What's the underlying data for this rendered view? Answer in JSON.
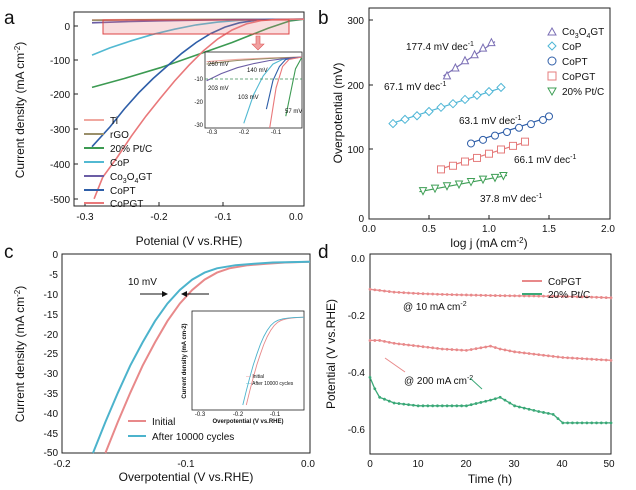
{
  "chart_data": [
    {
      "panel": "a",
      "type": "line",
      "xlabel": "Potenial (V vs.RHE)",
      "ylabel": "Current density (mA cm⁻²)",
      "xlim": [
        -0.32,
        0
      ],
      "ylim": [
        -520,
        20
      ],
      "xticks": [
        -0.3,
        -0.2,
        -0.1,
        0.0
      ],
      "yticks": [
        0,
        -100,
        -200,
        -300,
        -400,
        -500
      ],
      "series": [
        {
          "name": "Ti",
          "color": "#f0a8a0",
          "x": [
            -0.295,
            -0.25,
            -0.2,
            -0.15,
            -0.1,
            -0.05,
            0
          ],
          "y": [
            -2,
            -1.5,
            -1,
            -0.7,
            -0.4,
            -0.2,
            0
          ]
        },
        {
          "name": "rGO",
          "color": "#9a8f6a",
          "x": [
            -0.295,
            -0.25,
            -0.2,
            -0.15,
            -0.1,
            -0.05,
            0
          ],
          "y": [
            -3,
            -2.2,
            -1.5,
            -1,
            -0.6,
            -0.3,
            0
          ]
        },
        {
          "name": "20% Pt/C",
          "color": "#3c9a52",
          "x": [
            -0.295,
            -0.25,
            -0.2,
            -0.15,
            -0.1,
            -0.05,
            -0.02,
            0
          ],
          "y": [
            -190,
            -165,
            -135,
            -100,
            -65,
            -25,
            -5,
            0
          ]
        },
        {
          "name": "CoP",
          "color": "#52b9d2",
          "x": [
            -0.295,
            -0.27,
            -0.24,
            -0.21,
            -0.18,
            -0.15,
            -0.12,
            -0.09,
            -0.06,
            0
          ],
          "y": [
            -100,
            -80,
            -60,
            -42,
            -28,
            -16,
            -8,
            -3,
            -1,
            0
          ]
        },
        {
          "name": "Co3O4GT",
          "color": "#6b5da5",
          "x": [
            -0.295,
            -0.25,
            -0.2,
            -0.15,
            -0.1,
            -0.05,
            0
          ],
          "y": [
            -10,
            -7,
            -4.5,
            -2.8,
            -1.5,
            -0.6,
            0
          ]
        },
        {
          "name": "CoPT",
          "color": "#2e5ea8",
          "x": [
            -0.295,
            -0.27,
            -0.25,
            -0.23,
            -0.21,
            -0.19,
            -0.17,
            -0.15,
            -0.13,
            -0.11,
            -0.09,
            -0.07,
            -0.05,
            0
          ],
          "y": [
            -355,
            -300,
            -250,
            -205,
            -165,
            -130,
            -95,
            -65,
            -40,
            -22,
            -10,
            -4,
            -1,
            0
          ]
        },
        {
          "name": "CoPGT",
          "color": "#e9787a",
          "x": [
            -0.292,
            -0.28,
            -0.26,
            -0.24,
            -0.22,
            -0.2,
            -0.18,
            -0.16,
            -0.14,
            -0.12,
            -0.1,
            -0.08,
            -0.06,
            -0.04,
            0
          ],
          "y": [
            -500,
            -440,
            -385,
            -325,
            -270,
            -220,
            -172,
            -128,
            -88,
            -55,
            -30,
            -13,
            -4,
            -1,
            0
          ]
        }
      ],
      "legend": [
        "Ti",
        "rGO",
        "20% Pt/C",
        "CoP",
        "Co3O4GT",
        "CoPT",
        "CoPGT"
      ],
      "inset": {
        "xlim": [
          -0.3,
          0
        ],
        "ylim": [
          -30,
          0
        ],
        "xticks": [
          -0.3,
          -0.2,
          -0.1
        ],
        "yticks": [
          -10,
          -20,
          -30
        ],
        "marker_line": -10,
        "labels": [
          "260 mV",
          "140 mV",
          "203 mV",
          "103 mV",
          "57 mV"
        ]
      }
    },
    {
      "panel": "b",
      "type": "scatter",
      "xlabel": "log j (mA cm⁻²)",
      "ylabel": "Overpotential (mV)",
      "xlim": [
        0.0,
        2.0
      ],
      "ylim": [
        0,
        350
      ],
      "xticks": [
        0.0,
        0.5,
        1.0,
        1.5,
        2.0
      ],
      "yticks": [
        0,
        100,
        200,
        300
      ],
      "series": [
        {
          "name": "Co3O4GT",
          "color": "#7b6fb5",
          "marker": "triangle-up",
          "tafel": "177.4 mV dec⁻¹",
          "x": [
            0.65,
            0.72,
            0.8,
            0.88,
            0.95,
            1.02
          ],
          "y": [
            230,
            243,
            255,
            265,
            276,
            285
          ]
        },
        {
          "name": "CoP",
          "color": "#4fb6d6",
          "marker": "diamond",
          "tafel": "67.1 mV dec⁻¹",
          "x": [
            0.2,
            0.3,
            0.4,
            0.5,
            0.6,
            0.7,
            0.8,
            0.9,
            1.0,
            1.1
          ],
          "y": [
            150,
            157,
            163,
            170,
            177,
            183,
            190,
            197,
            203,
            210
          ]
        },
        {
          "name": "CoPT",
          "color": "#2f5ea8",
          "marker": "circle",
          "tafel": "63.1 mV dec⁻¹",
          "x": [
            0.85,
            0.95,
            1.05,
            1.15,
            1.25,
            1.35,
            1.45,
            1.5
          ],
          "y": [
            117,
            123,
            130,
            136,
            143,
            149,
            156,
            162
          ]
        },
        {
          "name": "CoPGT",
          "color": "#e57c7c",
          "marker": "square",
          "tafel": "66.1 mV dec⁻¹",
          "x": [
            0.6,
            0.7,
            0.8,
            0.9,
            1.0,
            1.1,
            1.2,
            1.3
          ],
          "y": [
            74,
            80,
            87,
            93,
            100,
            107,
            113,
            120
          ]
        },
        {
          "name": "20% Pt/C",
          "color": "#3f9f56",
          "marker": "triangle-down",
          "tafel": "37.8 mV dec⁻¹",
          "x": [
            0.45,
            0.55,
            0.65,
            0.75,
            0.85,
            0.95,
            1.05,
            1.12
          ],
          "y": [
            38,
            42,
            46,
            49,
            53,
            57,
            60,
            63
          ]
        }
      ],
      "legend": [
        "Co3O4GT",
        "CoP",
        "CoPT",
        "CoPGT",
        "20% Pt/C"
      ]
    },
    {
      "panel": "c",
      "type": "line",
      "xlabel": "Overpotential (V vs.RHE)",
      "ylabel": "Current density (mA cm⁻²)",
      "xlim": [
        -0.2,
        0.0
      ],
      "ylim": [
        -50,
        0
      ],
      "xticks": [
        -0.2,
        -0.1,
        0.0
      ],
      "yticks": [
        0,
        -5,
        -10,
        -15,
        -20,
        -25,
        -30,
        -35,
        -40,
        -45,
        -50
      ],
      "annotation": "10 mV",
      "series": [
        {
          "name": "Initial",
          "color": "#e8898a",
          "x": [
            -0.165,
            -0.155,
            -0.145,
            -0.135,
            -0.125,
            -0.115,
            -0.105,
            -0.095,
            -0.085,
            -0.075,
            -0.065,
            -0.05,
            -0.035,
            -0.02,
            0.0
          ],
          "y": [
            -50,
            -42,
            -34.5,
            -27.5,
            -21.5,
            -16,
            -11.5,
            -8,
            -5.3,
            -3.5,
            -2.4,
            -1.6,
            -1.2,
            -0.9,
            -0.7
          ]
        },
        {
          "name": "After 10000 cycles",
          "color": "#4cb3cc",
          "x": [
            -0.175,
            -0.165,
            -0.155,
            -0.145,
            -0.135,
            -0.125,
            -0.115,
            -0.105,
            -0.095,
            -0.085,
            -0.075,
            -0.06,
            -0.045,
            -0.03,
            0.0
          ],
          "y": [
            -50,
            -42,
            -34.5,
            -27.5,
            -21.5,
            -16,
            -11.5,
            -8,
            -5.3,
            -3.5,
            -2.4,
            -1.6,
            -1.2,
            -0.9,
            -0.7
          ]
        }
      ],
      "legend": [
        "Initial",
        "After 10000 cycles"
      ],
      "inset": {
        "xlabel": "Overpotential (V vs.RHE)",
        "ylabel": "Current density (mA cm⁻²)",
        "xticks": [
          -0.3,
          -0.2,
          -0.1
        ],
        "legend": [
          "Initial",
          "After 10000 cycles"
        ]
      }
    },
    {
      "panel": "d",
      "type": "line",
      "xlabel": "Time (h)",
      "ylabel": "Potential (V vs.RHE)",
      "xlim": [
        0,
        50
      ],
      "ylim": [
        -0.7,
        0.0
      ],
      "xticks": [
        0,
        10,
        20,
        30,
        40,
        50
      ],
      "yticks": [
        0.0,
        -0.2,
        -0.4,
        -0.6
      ],
      "annotations": [
        "@ 10 mA cm⁻²",
        "@ 200 mA cm⁻²"
      ],
      "series": [
        {
          "name": "CoPGT @10",
          "color": "#e8898a",
          "x": [
            0,
            5,
            10,
            15,
            20,
            25,
            30,
            35,
            40,
            45,
            50
          ],
          "y": [
            -0.11,
            -0.12,
            -0.125,
            -0.128,
            -0.13,
            -0.132,
            -0.133,
            -0.134,
            -0.135,
            -0.137,
            -0.14
          ]
        },
        {
          "name": "CoPGT @200",
          "color": "#e8898a",
          "x": [
            0,
            2,
            5,
            10,
            15,
            20,
            25,
            27,
            30,
            35,
            40,
            45,
            50
          ],
          "y": [
            -0.29,
            -0.29,
            -0.3,
            -0.31,
            -0.32,
            -0.325,
            -0.31,
            -0.32,
            -0.33,
            -0.34,
            -0.35,
            -0.355,
            -0.36
          ]
        },
        {
          "name": "20% Pt/C",
          "color": "#3aa877",
          "x": [
            0,
            1,
            2,
            5,
            10,
            15,
            20,
            25,
            27,
            30,
            35,
            38,
            40,
            45,
            50
          ],
          "y": [
            -0.42,
            -0.46,
            -0.49,
            -0.51,
            -0.52,
            -0.52,
            -0.52,
            -0.5,
            -0.49,
            -0.52,
            -0.54,
            -0.55,
            -0.58,
            -0.58,
            -0.58
          ]
        }
      ],
      "legend": [
        "CoPGT",
        "20% Pt/C"
      ]
    }
  ],
  "labels": {
    "a": {
      "panel": "a",
      "xlabel": "Potenial (V vs.RHE)",
      "ylabel": "Current density (mA cm",
      "ylabel_sup": "-2",
      "ylabel_end": ")",
      "xticks": [
        "-0.3",
        "-0.2",
        "-0.1",
        "0.0"
      ],
      "yticks": [
        "0",
        "-100",
        "-200",
        "-300",
        "-400",
        "-500"
      ],
      "legend": [
        "Ti",
        "rGO",
        "20% Pt/C",
        "CoP",
        "Co",
        "CoPT",
        "CoPGT"
      ],
      "legend_co3o4": {
        "a": "3",
        "b": "O",
        "c": "4",
        "d": "GT"
      },
      "inset": {
        "ticks_x": [
          "-0.3",
          "-0.2",
          "-0.1"
        ],
        "ticks_y": [
          "-10",
          "-20",
          "-30"
        ],
        "labels": [
          "260 mV",
          "140 mV",
          "203 mV",
          "103 mV",
          "57 mV"
        ]
      }
    },
    "b": {
      "panel": "b",
      "xlabel": "log j (mA cm",
      "xlabel_sup": "-2",
      "xlabel_end": ")",
      "ylabel": "Overpotential (mV)",
      "xticks": [
        "0.0",
        "0.5",
        "1.0",
        "1.5",
        "2.0"
      ],
      "yticks": [
        "0",
        "100",
        "200",
        "300"
      ],
      "legend": [
        "Co",
        "CoP",
        "CoPT",
        "CoPGT",
        "20% Pt/C"
      ],
      "legend_co3o4": {
        "a": "3",
        "b": "O",
        "c": "4",
        "d": "GT"
      },
      "tafel": [
        "177.4 mV dec",
        "67.1 mV dec",
        "63.1 mV dec",
        "66.1 mV dec",
        "37.8 mV dec"
      ],
      "tafel_sup": "-1"
    },
    "c": {
      "panel": "c",
      "xlabel": "Overpotential (V vs.RHE)",
      "ylabel": "Current density (mA cm",
      "ylabel_sup": "-2",
      "ylabel_end": ")",
      "xticks": [
        "-0.2",
        "-0.1",
        "0.0"
      ],
      "yticks": [
        "0",
        "-5",
        "-10",
        "-15",
        "-20",
        "-25",
        "-30",
        "-35",
        "-40",
        "-45",
        "-50"
      ],
      "annotation": "10 mV",
      "legend": [
        "Initial",
        "After 10000 cycles"
      ],
      "inset": {
        "xlabel": "Overpotential (V vs.RHE)",
        "ylabel": "Current density (mA cm-2)",
        "xticks": [
          "-0.3",
          "-0.2",
          "-0.1"
        ],
        "legend": [
          "Initial",
          "After 10000 cycles"
        ]
      }
    },
    "d": {
      "panel": "d",
      "xlabel": "Time (h)",
      "ylabel": "Potential (V vs.RHE)",
      "xticks": [
        "0",
        "10",
        "20",
        "30",
        "40",
        "50"
      ],
      "yticks": [
        "0.0",
        "-0.2",
        "-0.4",
        "-0.6"
      ],
      "ann1": "@ 10 mA cm",
      "ann2": "@ 200 mA cm",
      "ann_sup": "-2",
      "legend": [
        "CoPGT",
        "20% Pt/C"
      ]
    }
  }
}
